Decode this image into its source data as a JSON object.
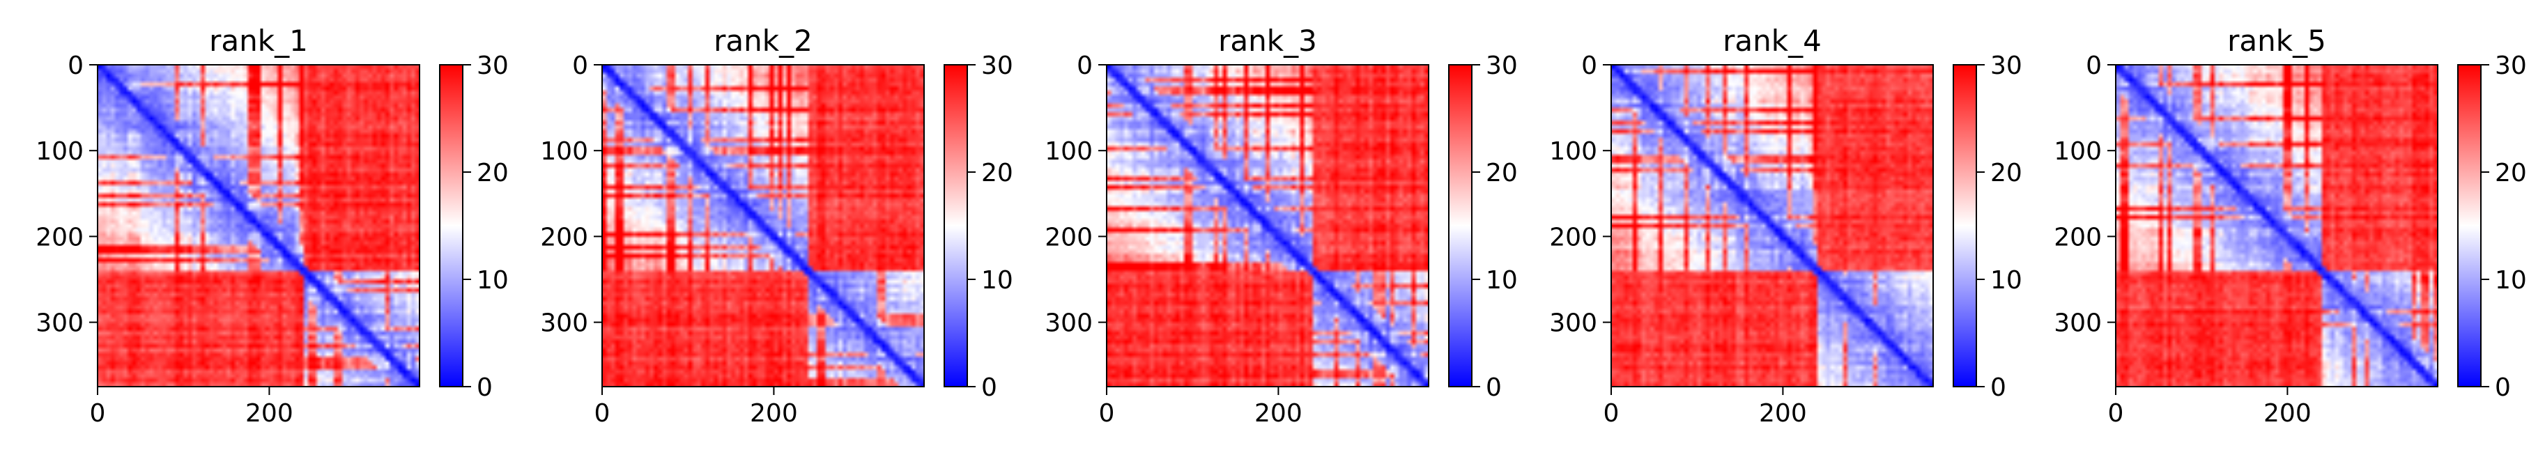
{
  "chart_data": [
    {
      "type": "heatmap",
      "title": "rank_1",
      "xlim": [
        0,
        375
      ],
      "ylim": [
        375,
        0
      ],
      "xticks": [
        0,
        200
      ],
      "yticks": [
        0,
        100,
        200,
        300
      ],
      "xtick_labels": [
        "0",
        "200"
      ],
      "ytick_labels": [
        "0",
        "100",
        "200",
        "300"
      ],
      "colorbar": {
        "range": [
          0,
          30
        ],
        "ticks": [
          0,
          10,
          20,
          30
        ],
        "tick_labels": [
          "0",
          "10",
          "20",
          "30"
        ],
        "colormap": "bwr"
      },
      "blocks": [
        [
          0,
          240
        ],
        [
          240,
          375
        ]
      ]
    },
    {
      "type": "heatmap",
      "title": "rank_2",
      "xlim": [
        0,
        375
      ],
      "ylim": [
        375,
        0
      ],
      "xticks": [
        0,
        200
      ],
      "yticks": [
        0,
        100,
        200,
        300
      ],
      "xtick_labels": [
        "0",
        "200"
      ],
      "ytick_labels": [
        "0",
        "100",
        "200",
        "300"
      ],
      "colorbar": {
        "range": [
          0,
          30
        ],
        "ticks": [
          0,
          10,
          20,
          30
        ],
        "tick_labels": [
          "0",
          "10",
          "20",
          "30"
        ],
        "colormap": "bwr"
      },
      "blocks": [
        [
          0,
          240
        ],
        [
          240,
          375
        ]
      ]
    },
    {
      "type": "heatmap",
      "title": "rank_3",
      "xlim": [
        0,
        375
      ],
      "ylim": [
        375,
        0
      ],
      "xticks": [
        0,
        200
      ],
      "yticks": [
        0,
        100,
        200,
        300
      ],
      "xtick_labels": [
        "0",
        "200"
      ],
      "ytick_labels": [
        "0",
        "100",
        "200",
        "300"
      ],
      "colorbar": {
        "range": [
          0,
          30
        ],
        "ticks": [
          0,
          10,
          20,
          30
        ],
        "tick_labels": [
          "0",
          "10",
          "20",
          "30"
        ],
        "colormap": "bwr"
      },
      "blocks": [
        [
          0,
          240
        ],
        [
          240,
          375
        ]
      ]
    },
    {
      "type": "heatmap",
      "title": "rank_4",
      "xlim": [
        0,
        375
      ],
      "ylim": [
        375,
        0
      ],
      "xticks": [
        0,
        200
      ],
      "yticks": [
        0,
        100,
        200,
        300
      ],
      "xtick_labels": [
        "0",
        "200"
      ],
      "ytick_labels": [
        "0",
        "100",
        "200",
        "300"
      ],
      "colorbar": {
        "range": [
          0,
          30
        ],
        "ticks": [
          0,
          10,
          20,
          30
        ],
        "tick_labels": [
          "0",
          "10",
          "20",
          "30"
        ],
        "colormap": "bwr"
      },
      "blocks": [
        [
          0,
          240
        ],
        [
          240,
          375
        ]
      ]
    },
    {
      "type": "heatmap",
      "title": "rank_5",
      "xlim": [
        0,
        375
      ],
      "ylim": [
        375,
        0
      ],
      "xticks": [
        0,
        200
      ],
      "yticks": [
        0,
        100,
        200,
        300
      ],
      "xtick_labels": [
        "0",
        "200"
      ],
      "ytick_labels": [
        "0",
        "100",
        "200",
        "300"
      ],
      "colorbar": {
        "range": [
          0,
          30
        ],
        "ticks": [
          0,
          10,
          20,
          30
        ],
        "tick_labels": [
          "0",
          "10",
          "20",
          "30"
        ],
        "colormap": "bwr"
      },
      "blocks": [
        [
          0,
          240
        ],
        [
          240,
          375
        ]
      ]
    }
  ]
}
